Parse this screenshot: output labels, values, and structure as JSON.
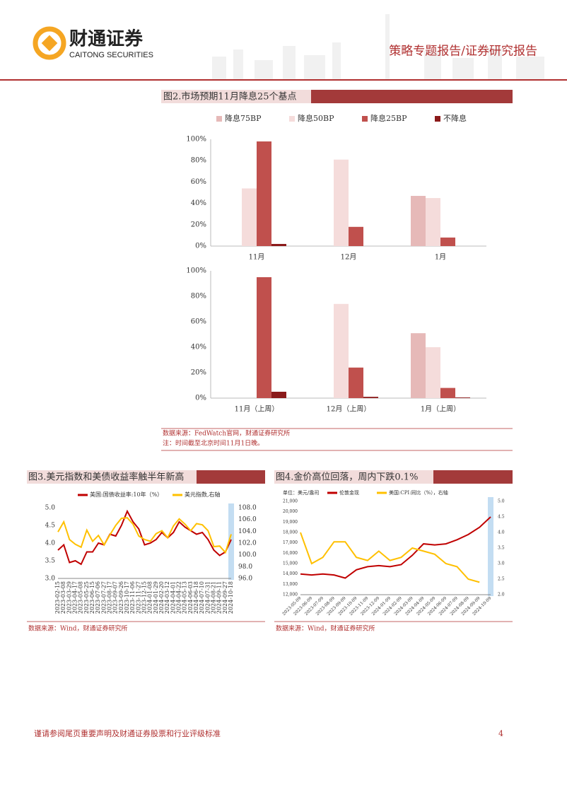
{
  "header": {
    "company_cn": "财通证券",
    "company_en": "CAITONG SECURITIES",
    "report_type": "策略专题报告/证券研究报告"
  },
  "figures": [
    {
      "title": "图2.市场预期11月降息25个基点",
      "charts": [
        {
          "chart_data": {
            "type": "bar",
            "categories": [
              "11月",
              "12月",
              "1月"
            ],
            "series": [
              {
                "name": "降息75BP",
                "color": "#e6b9b8",
                "values": [
                  0,
                  0,
                  47
                ]
              },
              {
                "name": "降息50BP",
                "color": "#f5dcdb",
                "values": [
                  54,
                  81,
                  45
                ]
              },
              {
                "name": "降息25BP",
                "color": "#c0504d",
                "values": [
                  98,
                  18,
                  8
                ]
              },
              {
                "name": "不降息",
                "color": "#8b1a1a",
                "values": [
                  2,
                  0,
                  0
                ]
              }
            ],
            "ylim": [
              0,
              100
            ],
            "yticks": [
              {
                "value": 0,
                "label": "0%"
              },
              {
                "value": 20,
                "label": "20%"
              },
              {
                "value": 40,
                "label": "40%"
              },
              {
                "value": 60,
                "label": "60%"
              },
              {
                "value": 80,
                "label": "80%"
              },
              {
                "value": 100,
                "label": "100%"
              }
            ]
          }
        },
        {
          "chart_data": {
            "type": "bar",
            "categories": [
              "11月（上周）",
              "12月（上周）",
              "1月（上周）"
            ],
            "series": [
              {
                "color": "#e6b9b8",
                "values": [
                  0,
                  0,
                  51
                ]
              },
              {
                "color": "#f5dcdb",
                "values": [
                  0,
                  74,
                  40
                ]
              },
              {
                "color": "#c0504d",
                "values": [
                  95,
                  24,
                  8
                ]
              },
              {
                "color": "#8b1a1a",
                "values": [
                  5,
                  1,
                  0.5
                ]
              }
            ],
            "ylim": [
              0,
              100
            ],
            "yticks": [
              {
                "value": 0,
                "label": "0%"
              },
              {
                "value": 20,
                "label": "20%"
              },
              {
                "value": 40,
                "label": "40%"
              },
              {
                "value": 60,
                "label": "60%"
              },
              {
                "value": 80,
                "label": "80%"
              },
              {
                "value": 100,
                "label": "100%"
              }
            ]
          }
        }
      ],
      "source": "数据来源：FedWatch官网，财通证券研究所",
      "note": "注：时间截至北京时间11月1日晚。"
    },
    {
      "title": "图3.美元指数和美债收益率触半年新高",
      "charts": [
        {
          "chart_data": {
            "type": "line",
            "categories": [
              "2023-02-15",
              "2023-03-08",
              "2023-03-29",
              "2023-04-17",
              "2023-05-08",
              "2023-05-25",
              "2023-06-15",
              "2023-07-06",
              "2023-07-27",
              "2023-08-17",
              "2023-09-07",
              "2023-09-26",
              "2023-10-17",
              "2023-11-06",
              "2023-11-27",
              "2023-12-15",
              "2024-01-08",
              "2024-01-29",
              "2024-02-20",
              "2024-03-12",
              "2024-04-01",
              "2024-04-22",
              "2024-05-13",
              "2024-06-03",
              "2024-06-18",
              "2024-07-10",
              "2024-07-31",
              "2024-08-21",
              "2024-09-11",
              "2024-09-27",
              "2024-10-18"
            ],
            "series": [
              {
                "name": "美国:国债收益率:10年（%）",
                "color": "#c00000",
                "values": [
                  3.8,
                  3.95,
                  3.45,
                  3.5,
                  3.4,
                  3.75,
                  3.75,
                  4.0,
                  3.95,
                  4.25,
                  4.2,
                  4.5,
                  4.9,
                  4.6,
                  4.4,
                  3.95,
                  4.0,
                  4.1,
                  4.3,
                  4.15,
                  4.3,
                  4.6,
                  4.45,
                  4.35,
                  4.25,
                  4.3,
                  4.1,
                  3.8,
                  3.65,
                  3.75,
                  4.1
                ]
              },
              {
                "name": "美元指数,右轴",
                "color": "#ffc000",
                "axis": "y2",
                "values": [
                  103.9,
                  105.6,
                  102.6,
                  101.8,
                  101.3,
                  104.2,
                  102.3,
                  103.3,
                  101.7,
                  103.4,
                  105.0,
                  106.2,
                  106.3,
                  105.2,
                  103.2,
                  102.6,
                  102.3,
                  103.6,
                  104.1,
                  102.9,
                  104.9,
                  106.1,
                  105.2,
                  104.1,
                  105.3,
                  105.1,
                  104.1,
                  101.4,
                  101.5,
                  100.4,
                  103.5
                ]
              }
            ],
            "ylim": [
              3,
              5
            ],
            "yticks": [
              {
                "value": 3,
                "label": "3.0"
              },
              3.5,
              {
                "value": 4,
                "label": "4.0"
              },
              4.5,
              {
                "value": 5,
                "label": "5.0"
              }
            ],
            "y2lim": [
              96,
              108
            ],
            "y2ticks": [
              {
                "value": 96,
                "label": "96.0"
              },
              {
                "value": 98,
                "label": "98.0"
              },
              {
                "value": 100,
                "label": "100.0"
              },
              {
                "value": 102,
                "label": "102.0"
              },
              {
                "value": 104,
                "label": "104.0"
              },
              {
                "value": 106,
                "label": "106.0"
              },
              {
                "value": 108,
                "label": "108.0"
              }
            ]
          }
        }
      ],
      "source": "数据来源：Wind，财通证券研究所"
    },
    {
      "title": "图4.金价高位回落，周内下跌0.1%",
      "charts": [
        {
          "chart_data": {
            "type": "line",
            "ylabel": "单位：美元/盎司",
            "categories": [
              "2023-05-09",
              "2023-06-09",
              "2023-07-09",
              "2023-08-09",
              "2023-09-09",
              "2023-10-09",
              "2023-11-09",
              "2023-12-09",
              "2024-01-09",
              "2024-02-09",
              "2024-03-09",
              "2024-04-09",
              "2024-05-09",
              "2024-06-09",
              "2024-07-09",
              "2024-08-09",
              "2024-09-09",
              "2024-10-09"
            ],
            "series": [
              {
                "name": "伦敦金现",
                "color": "#c00000",
                "values": [
                  14000,
                  13900,
                  14000,
                  13900,
                  13600,
                  14400,
                  14700,
                  14800,
                  14700,
                  14900,
                  15800,
                  16900,
                  16800,
                  16900,
                  17300,
                  17800,
                  18500,
                  19500
                ]
              },
              {
                "name": "美国:CPI:同比（%），右轴",
                "color": "#ffc000",
                "axis": "y2",
                "values": [
                  4.0,
                  3.0,
                  3.2,
                  3.7,
                  3.7,
                  3.2,
                  3.1,
                  3.4,
                  3.1,
                  3.2,
                  3.5,
                  3.4,
                  3.3,
                  3.0,
                  2.9,
                  2.5,
                  2.4,
                  null
                ]
              }
            ],
            "ylim": [
              12000,
              21000
            ],
            "yticks": [
              {
                "value": 12000,
                "label": "12,000"
              },
              {
                "value": 13000,
                "label": "13,000"
              },
              {
                "value": 14000,
                "label": "14,000"
              },
              {
                "value": 15000,
                "label": "15,000"
              },
              {
                "value": 16000,
                "label": "16,000"
              },
              {
                "value": 17000,
                "label": "17,000"
              },
              {
                "value": 18000,
                "label": "18,000"
              },
              {
                "value": 19000,
                "label": "19,000"
              },
              {
                "value": 20000,
                "label": "20,000"
              },
              {
                "value": 21000,
                "label": "21,000"
              }
            ],
            "y2lim": [
              2,
              5
            ],
            "y2ticks": [
              {
                "value": 2,
                "label": "2.0"
              },
              2.5,
              {
                "value": 3,
                "label": "3.0"
              },
              3.5,
              {
                "value": 4,
                "label": "4.0"
              },
              4.5,
              {
                "value": 5,
                "label": "5.0"
              }
            ]
          }
        }
      ],
      "source": "数据来源：Wind，财通证券研究所"
    }
  ],
  "footer": {
    "disclaimer": "谨请参阅尾页重要声明及财通证券股票和行业评级标准",
    "page": 4
  }
}
